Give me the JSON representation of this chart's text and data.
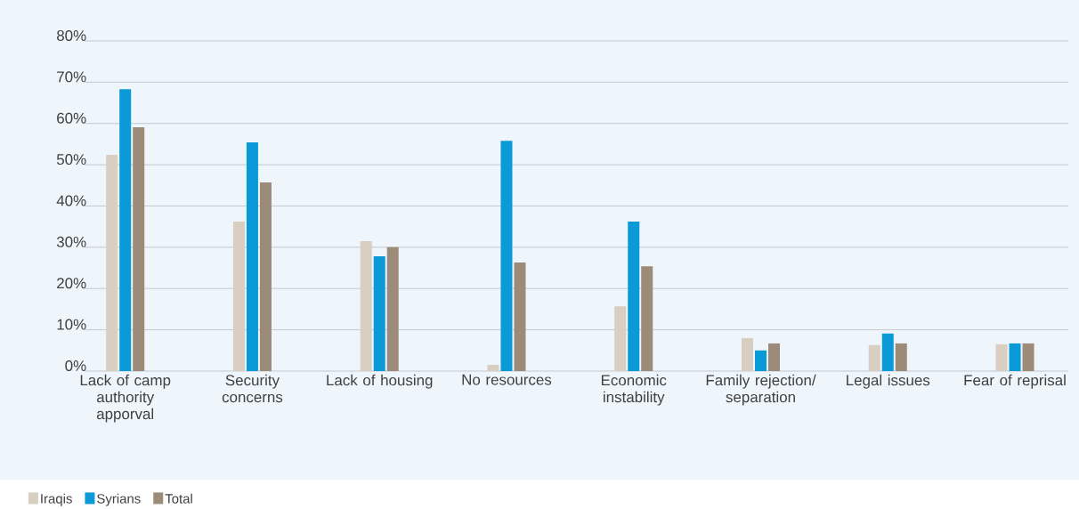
{
  "chart_data": {
    "type": "bar",
    "categories": [
      "Lack of camp authority apporval",
      "Security concerns",
      "Lack of housing",
      "No resources",
      "Economic instability",
      "Family rejection/ separation",
      "Legal issues",
      "Fear of reprisal"
    ],
    "series": [
      {
        "name": "Iraqis",
        "color": "#d9cec2",
        "values": [
          52.4,
          36.2,
          31.5,
          1.5,
          15.7,
          8.0,
          6.3,
          6.5
        ]
      },
      {
        "name": "Syrians",
        "color": "#0a9ad7",
        "values": [
          68.3,
          55.4,
          27.8,
          55.8,
          36.2,
          5.0,
          9.1,
          6.7
        ]
      },
      {
        "name": "Total",
        "color": "#9c8b78",
        "values": [
          59.1,
          45.7,
          30.0,
          26.3,
          25.4,
          6.7,
          6.7,
          6.7
        ]
      }
    ],
    "ylim": [
      0,
      80
    ],
    "yticks": [
      {
        "value": 0,
        "label": "0%"
      },
      {
        "value": 10,
        "label": "10%"
      },
      {
        "value": 20,
        "label": "20%"
      },
      {
        "value": 30,
        "label": "30%"
      },
      {
        "value": 40,
        "label": "40%"
      },
      {
        "value": 50,
        "label": "50%"
      },
      {
        "value": 60,
        "label": "60%"
      },
      {
        "value": 70,
        "label": "70%"
      },
      {
        "value": 80,
        "label": "80%"
      }
    ],
    "grid": "y",
    "legend": "bottom left"
  }
}
